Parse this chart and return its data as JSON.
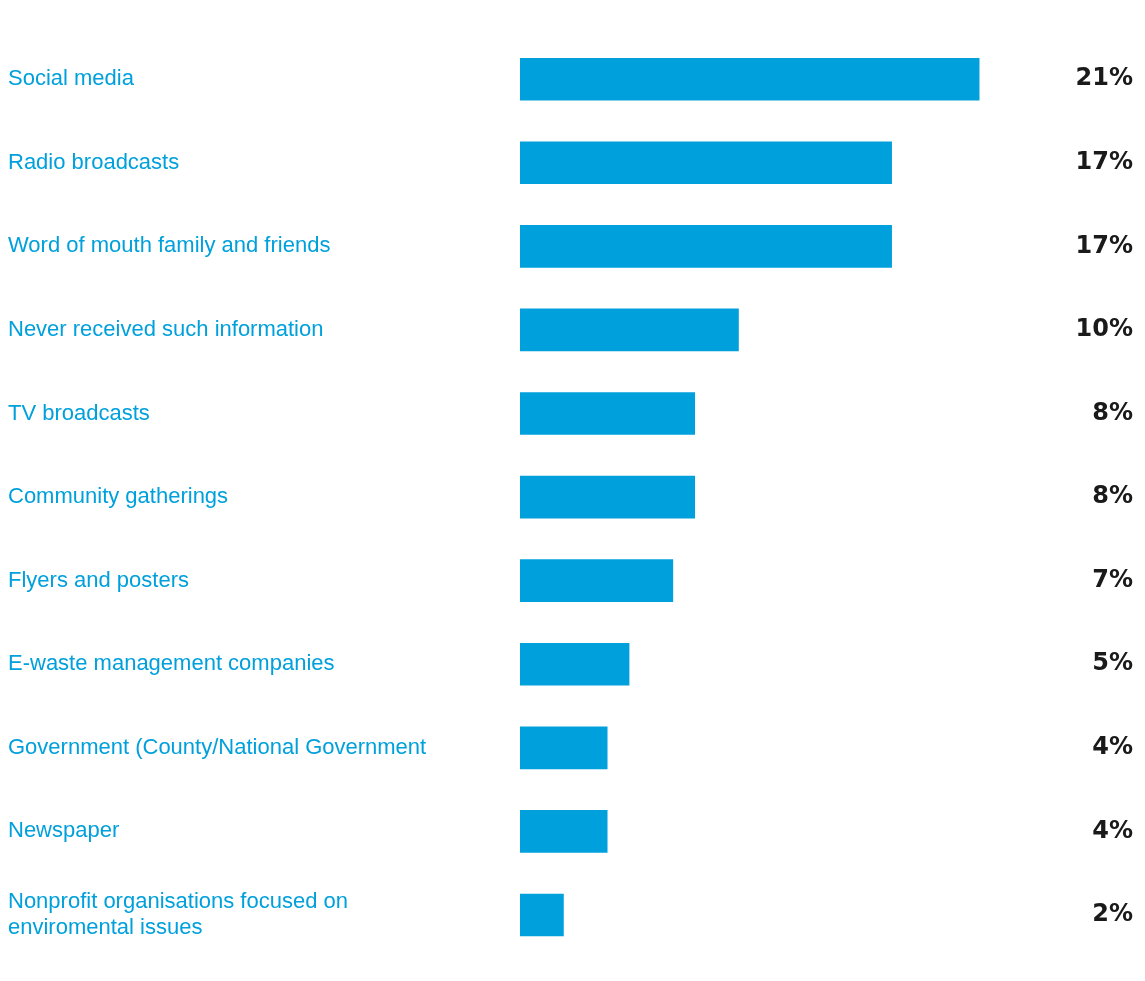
{
  "chart_data": {
    "type": "bar",
    "orientation": "horizontal",
    "categories": [
      "Social media",
      "Radio broadcasts",
      "Word of mouth family and friends",
      "Never received such information",
      "TV broadcasts",
      "Community gatherings",
      "Flyers and posters",
      "E-waste management companies",
      "Government (County/National Government",
      "Newspaper",
      "Nonprofit organisations focused on enviromental issues"
    ],
    "values": [
      21,
      17,
      17,
      10,
      8,
      8,
      7,
      5,
      4,
      4,
      2
    ],
    "color": "#00a0dc",
    "value_labels": [
      "21%",
      "17%",
      "17%",
      "10%",
      "8%",
      "8%",
      "7%",
      "5%",
      "4%",
      "4%",
      "2%"
    ],
    "legend": false
  }
}
